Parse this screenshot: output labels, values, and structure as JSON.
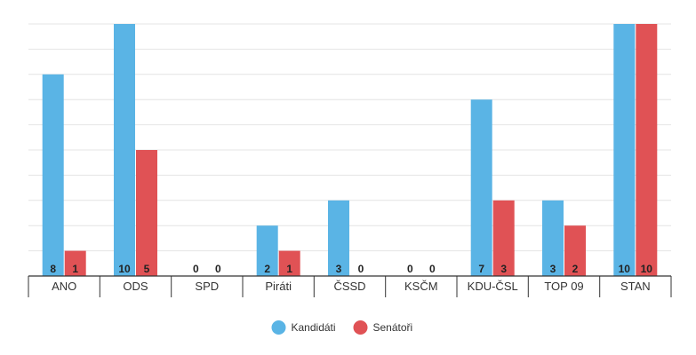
{
  "chart_data": {
    "type": "bar",
    "categories": [
      "ANO",
      "ODS",
      "SPD",
      "Piráti",
      "ČSSD",
      "KSČM",
      "KDU-ČSL",
      "TOP 09",
      "STAN"
    ],
    "series": [
      {
        "name": "Kandidáti",
        "color": "#5ab4e5",
        "values": [
          8,
          10,
          0,
          2,
          3,
          0,
          7,
          3,
          10
        ]
      },
      {
        "name": "Senátoři",
        "color": "#e05255",
        "values": [
          1,
          5,
          0,
          1,
          0,
          0,
          3,
          2,
          10
        ]
      }
    ],
    "ylim": [
      0,
      10
    ],
    "grid": true,
    "legend_position": "bottom-center"
  }
}
